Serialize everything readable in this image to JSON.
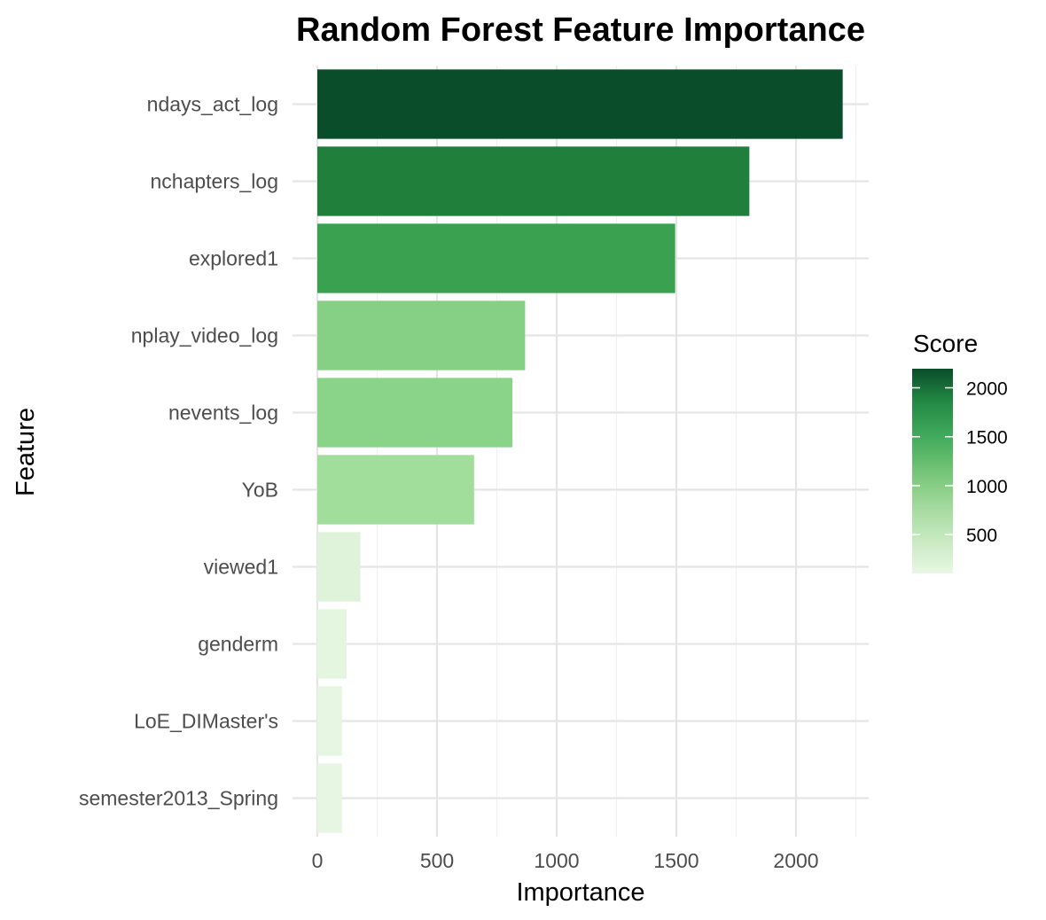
{
  "chart_data": {
    "type": "bar",
    "orientation": "horizontal",
    "title": "Random Forest Feature Importance",
    "xlabel": "Importance",
    "ylabel": "Feature",
    "xlim": [
      0,
      2300
    ],
    "xticks": [
      0,
      500,
      1000,
      1500,
      2000
    ],
    "grid": true,
    "categories": [
      "ndays_act_log",
      "nchapters_log",
      "explored1",
      "nplay_video_log",
      "nevents_log",
      "YoB",
      "viewed1",
      "genderm",
      "LoE_DIMaster's",
      "semester2013_Spring"
    ],
    "values": [
      2195,
      1805,
      1495,
      868,
      815,
      655,
      180,
      122,
      103,
      103
    ],
    "colors": [
      "#0a4d2a",
      "#217f3c",
      "#39a150",
      "#86d085",
      "#8ad489",
      "#a1dd9b",
      "#def3da",
      "#e4f5e0",
      "#e6f6e2",
      "#e6f6e2"
    ],
    "legend": {
      "title": "Score",
      "position": "right",
      "ticks": [
        500,
        1000,
        1500,
        2000
      ],
      "range": [
        103,
        2195
      ],
      "gradient": [
        "#e9f7e5",
        "#c7e9c0",
        "#a1d99b",
        "#74c476",
        "#41ab5d",
        "#238b45",
        "#0a4d2a"
      ]
    }
  }
}
